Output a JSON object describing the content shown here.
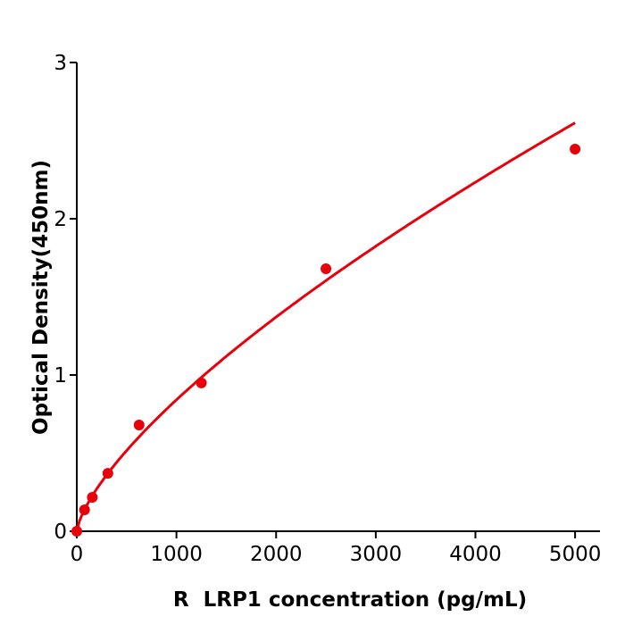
{
  "chart_data": {
    "type": "scatter",
    "title": "",
    "xlabel": "R  LRP1 concentration (pg/mL)",
    "ylabel": "Optical Density(450nm)",
    "xlim": [
      0,
      5250
    ],
    "ylim": [
      0,
      3
    ],
    "xticks": [
      0,
      1000,
      2000,
      3000,
      4000,
      5000
    ],
    "yticks": [
      0,
      1,
      2,
      3
    ],
    "grid": false,
    "color": "#e8000b",
    "fit_curve": true,
    "series": [
      {
        "x": [
          0,
          78,
          156,
          312,
          625,
          1250,
          2500,
          5000
        ],
        "y": [
          0.0,
          0.137,
          0.217,
          0.371,
          0.68,
          0.949,
          1.68,
          2.446
        ]
      }
    ]
  }
}
